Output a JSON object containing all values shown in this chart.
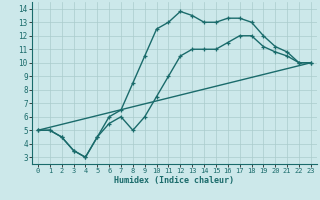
{
  "xlabel": "Humidex (Indice chaleur)",
  "bg_color": "#cce8ea",
  "grid_color": "#aacccc",
  "line_color": "#1a6b6b",
  "line1_x": [
    0,
    1,
    2,
    3,
    4,
    5,
    6,
    7,
    8,
    9,
    10,
    11,
    12,
    13,
    14,
    15,
    16,
    17,
    18,
    19,
    20,
    21,
    22,
    23
  ],
  "line1_y": [
    5,
    5,
    4.5,
    3.5,
    3,
    4.5,
    6,
    6.5,
    8.5,
    10.5,
    12.5,
    13,
    13.8,
    13.5,
    13,
    13,
    13.3,
    13.3,
    13,
    12,
    11.2,
    10.8,
    10,
    10
  ],
  "line2_x": [
    0,
    1,
    2,
    3,
    4,
    5,
    6,
    7,
    8,
    9,
    10,
    11,
    12,
    13,
    14,
    15,
    16,
    17,
    18,
    19,
    20,
    21,
    22,
    23
  ],
  "line2_y": [
    5,
    5,
    4.5,
    3.5,
    3,
    4.5,
    5.5,
    6.0,
    5.0,
    6.0,
    7.5,
    9,
    10.5,
    11,
    11,
    11,
    11.5,
    12,
    12,
    11.2,
    10.8,
    10.5,
    10,
    10
  ],
  "line3_x": [
    0,
    23
  ],
  "line3_y": [
    5,
    10
  ],
  "xlim": [
    -0.5,
    23.5
  ],
  "ylim": [
    2.5,
    14.5
  ],
  "xticks": [
    0,
    1,
    2,
    3,
    4,
    5,
    6,
    7,
    8,
    9,
    10,
    11,
    12,
    13,
    14,
    15,
    16,
    17,
    18,
    19,
    20,
    21,
    22,
    23
  ],
  "yticks": [
    3,
    4,
    5,
    6,
    7,
    8,
    9,
    10,
    11,
    12,
    13,
    14
  ]
}
